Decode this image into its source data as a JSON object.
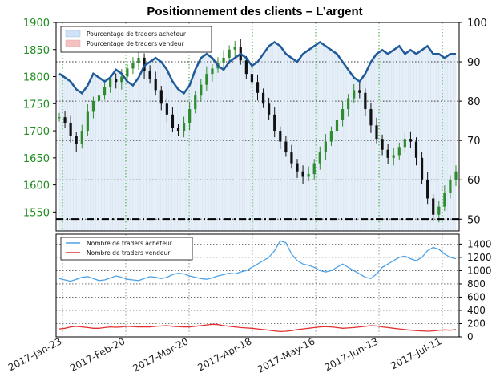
{
  "title": "Positionnement des clients – L’argent",
  "chart_data": [
    {
      "type": "candlestick+line",
      "panel": "top",
      "x_dates": [
        "2017-Jan-23",
        "2017-Feb-20",
        "2017-Mar-20",
        "2017-Apr-18",
        "2017-May-16",
        "2017-Jun-13",
        "2017-Jul-11"
      ],
      "price_axis": {
        "ticks": [
          1550,
          1600,
          1650,
          1700,
          1750,
          1800,
          1850,
          1900
        ],
        "range": [
          1515,
          1900
        ],
        "color": "#1e8c1e"
      },
      "percent_axis": {
        "ticks": [
          50,
          60,
          70,
          80,
          90,
          100
        ],
        "range": [
          47,
          100
        ]
      },
      "reference_line_price": 1537,
      "legend": [
        {
          "label": "Pourcentage de traders acheteur",
          "color": "#cfe2f7"
        },
        {
          "label": "Pourcentage de traders vendeur",
          "color": "#f5c2c2"
        }
      ],
      "price_series": [
        1725,
        1715,
        1690,
        1675,
        1700,
        1735,
        1755,
        1765,
        1780,
        1795,
        1790,
        1800,
        1815,
        1825,
        1835,
        1810,
        1795,
        1775,
        1750,
        1730,
        1705,
        1700,
        1715,
        1740,
        1765,
        1785,
        1805,
        1815,
        1825,
        1835,
        1850,
        1855,
        1830,
        1805,
        1790,
        1770,
        1750,
        1730,
        1700,
        1680,
        1660,
        1640,
        1625,
        1615,
        1620,
        1640,
        1660,
        1680,
        1700,
        1720,
        1740,
        1760,
        1775,
        1770,
        1740,
        1710,
        1685,
        1665,
        1650,
        1655,
        1670,
        1685,
        1680,
        1650,
        1610,
        1575,
        1545,
        1560,
        1585,
        1610,
        1625
      ],
      "buyer_percent_series": [
        87,
        86,
        85,
        83,
        82,
        84,
        87,
        86,
        85,
        86,
        88,
        87,
        85,
        84,
        86,
        89,
        90,
        91,
        90,
        88,
        85,
        83,
        82,
        84,
        88,
        91,
        92,
        91,
        89,
        88,
        90,
        91,
        92,
        91,
        89,
        90,
        92,
        94,
        95,
        94,
        92,
        91,
        90,
        92,
        93,
        94,
        95,
        94,
        93,
        92,
        90,
        88,
        86,
        85,
        87,
        90,
        92,
        93,
        92,
        93,
        94,
        92,
        93,
        92,
        93,
        94,
        92,
        92,
        91,
        92,
        92
      ]
    },
    {
      "type": "line",
      "panel": "bottom",
      "y_axis": {
        "ticks": [
          0,
          200,
          400,
          600,
          800,
          1000,
          1200,
          1400
        ],
        "range": [
          0,
          1550
        ]
      },
      "legend": [
        {
          "label": "Nombre de traders acheteur",
          "color": "#4da3e8"
        },
        {
          "label": "Nombre de traders vendeur",
          "color": "#e03030"
        }
      ],
      "series": [
        {
          "name": "Nombre de traders acheteur",
          "color": "#4da3e8",
          "values": [
            880,
            860,
            840,
            870,
            900,
            910,
            880,
            850,
            860,
            890,
            920,
            900,
            870,
            860,
            850,
            880,
            910,
            900,
            880,
            900,
            940,
            960,
            950,
            920,
            900,
            880,
            870,
            890,
            920,
            940,
            960,
            950,
            980,
            1000,
            1050,
            1100,
            1150,
            1200,
            1300,
            1450,
            1420,
            1250,
            1150,
            1100,
            1080,
            1050,
            1000,
            980,
            1000,
            1050,
            1100,
            1050,
            1000,
            950,
            900,
            880,
            950,
            1050,
            1100,
            1150,
            1200,
            1220,
            1180,
            1150,
            1200,
            1300,
            1350,
            1320,
            1250,
            1200,
            1180
          ]
        },
        {
          "name": "Nombre de traders vendeur",
          "color": "#e03030",
          "values": [
            120,
            130,
            150,
            160,
            150,
            140,
            130,
            130,
            140,
            150,
            145,
            150,
            160,
            155,
            150,
            150,
            150,
            160,
            165,
            170,
            160,
            155,
            150,
            150,
            160,
            170,
            180,
            190,
            185,
            170,
            160,
            150,
            140,
            135,
            130,
            120,
            110,
            100,
            90,
            80,
            85,
            95,
            110,
            120,
            130,
            140,
            150,
            155,
            150,
            140,
            130,
            135,
            140,
            150,
            160,
            170,
            165,
            150,
            140,
            130,
            120,
            110,
            100,
            95,
            90,
            85,
            90,
            100,
            105,
            100,
            110
          ]
        }
      ]
    }
  ]
}
